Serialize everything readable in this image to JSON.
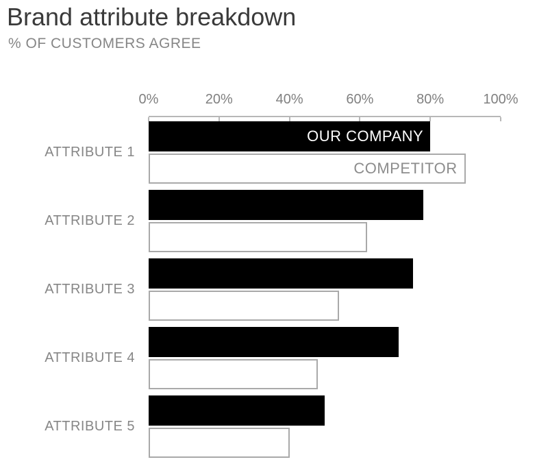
{
  "chart_data": {
    "type": "bar",
    "orientation": "horizontal",
    "title": "Brand attribute breakdown",
    "subtitle": "% OF CUSTOMERS AGREE",
    "categories": [
      "ATTRIBUTE 1",
      "ATTRIBUTE 2",
      "ATTRIBUTE 3",
      "ATTRIBUTE 4",
      "ATTRIBUTE 5"
    ],
    "series": [
      {
        "name": "OUR COMPANY",
        "values": [
          80,
          78,
          75,
          71,
          50
        ],
        "fill_color": "#000000",
        "label_color": "#ffffff"
      },
      {
        "name": "COMPETITOR",
        "values": [
          90,
          62,
          54,
          48,
          40
        ],
        "fill_color": "#ffffff",
        "border_color": "#a9a9a9",
        "label_color": "#8c8c8c"
      }
    ],
    "x_ticks": [
      "0%",
      "20%",
      "40%",
      "60%",
      "80%",
      "100%"
    ],
    "xlim": [
      0,
      100
    ],
    "grid": false,
    "legend_position": "inside-first-bars",
    "axis_color": "#b7b7b7",
    "tick_label_color": "#808080",
    "category_label_color": "#868686",
    "title_color": "#3a3a3a",
    "subtitle_color": "#868686"
  }
}
